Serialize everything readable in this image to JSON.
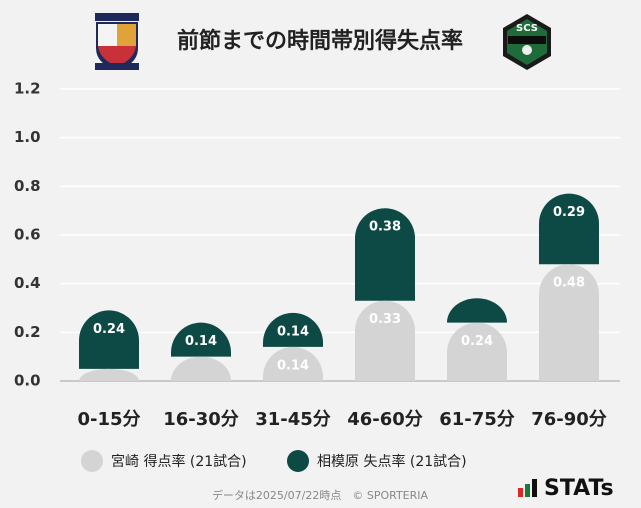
{
  "chart_data": {
    "type": "stacked_bar",
    "title": "前節までの時間帯別得失点率",
    "logo_text": "SCS",
    "categories": [
      "0-15分",
      "16-30分",
      "31-45分",
      "46-60分",
      "61-75分",
      "76-90分"
    ],
    "series": [
      {
        "name": "宮崎 得点率 (21試合)",
        "color": "#d4d4d4",
        "values": [
          0.05,
          0.1,
          0.14,
          0.33,
          0.24,
          0.48
        ],
        "value_labels": [
          null,
          null,
          "0.14",
          "0.33",
          "0.24",
          "0.48"
        ]
      },
      {
        "name": "相模原 失点率 (21試合)",
        "color": "#0d4a45",
        "values": [
          0.24,
          0.14,
          0.14,
          0.38,
          0.1,
          0.29
        ],
        "value_labels": [
          "0.24",
          "0.14",
          "0.14",
          "0.38",
          null,
          "0.29"
        ]
      }
    ],
    "ylim": [
      0,
      1.2
    ],
    "yticks": [
      {
        "value": 0,
        "label": "0.0"
      },
      0.2,
      0.4,
      0.6,
      0.8,
      {
        "value": 1,
        "label": "1.0"
      },
      1.2
    ],
    "grid": true,
    "footer": "データは2025/07/22時点　© SPORTERIA",
    "brand": "STATs"
  }
}
